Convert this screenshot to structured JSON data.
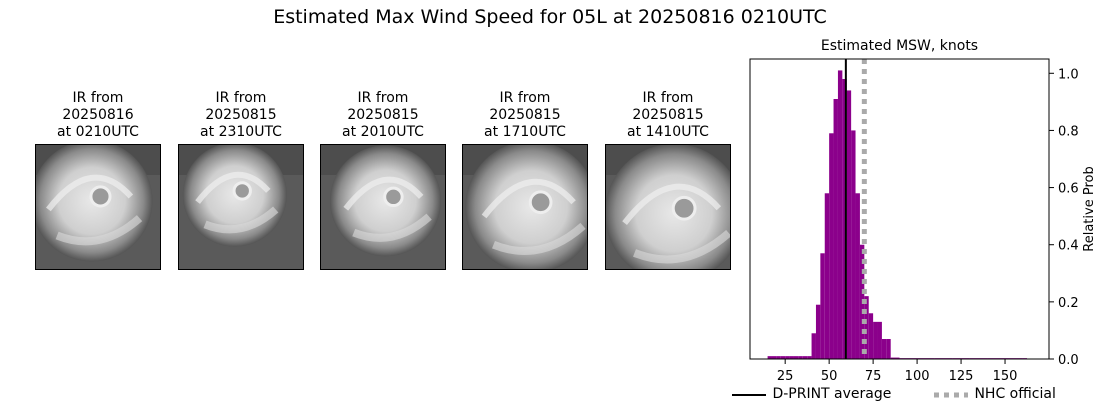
{
  "suptitle": "Estimated Max Wind Speed for 05L at 20250816 0210UTC",
  "ir_panels": [
    {
      "line1": "IR from",
      "line2": "20250816",
      "line3": "at 0210UTC"
    },
    {
      "line1": "IR from",
      "line2": "20250815",
      "line3": "at 2310UTC"
    },
    {
      "line1": "IR from",
      "line2": "20250815",
      "line3": "at 2010UTC"
    },
    {
      "line1": "IR from",
      "line2": "20250815",
      "line3": "at 1710UTC"
    },
    {
      "line1": "IR from",
      "line2": "20250815",
      "line3": "at 1410UTC"
    }
  ],
  "chart_data": {
    "type": "bar",
    "title": "Estimated MSW, knots",
    "xlabel": "",
    "ylabel": "Relative Prob",
    "xlim": [
      5,
      175
    ],
    "ylim": [
      0,
      1.05
    ],
    "xticks": [
      25,
      50,
      75,
      100,
      125,
      150
    ],
    "yticks": [
      0.0,
      0.2,
      0.4,
      0.6,
      0.8,
      1.0
    ],
    "ytick_labels": [
      "0.0",
      "0.2",
      "0.4",
      "0.6",
      "0.8",
      "1.0"
    ],
    "y_axis_side": "right",
    "bin_width": 2.5,
    "bins": [
      {
        "x": 15.0,
        "y": 0.01
      },
      {
        "x": 17.5,
        "y": 0.01
      },
      {
        "x": 20.0,
        "y": 0.01
      },
      {
        "x": 22.5,
        "y": 0.01
      },
      {
        "x": 25.0,
        "y": 0.01
      },
      {
        "x": 27.5,
        "y": 0.01
      },
      {
        "x": 30.0,
        "y": 0.01
      },
      {
        "x": 32.5,
        "y": 0.01
      },
      {
        "x": 35.0,
        "y": 0.01
      },
      {
        "x": 37.5,
        "y": 0.01
      },
      {
        "x": 40.0,
        "y": 0.09
      },
      {
        "x": 42.5,
        "y": 0.19
      },
      {
        "x": 45.0,
        "y": 0.37
      },
      {
        "x": 47.5,
        "y": 0.58
      },
      {
        "x": 50.0,
        "y": 0.79
      },
      {
        "x": 52.5,
        "y": 0.91
      },
      {
        "x": 55.0,
        "y": 1.01
      },
      {
        "x": 57.5,
        "y": 0.98
      },
      {
        "x": 60.0,
        "y": 0.94
      },
      {
        "x": 62.5,
        "y": 0.8
      },
      {
        "x": 65.0,
        "y": 0.58
      },
      {
        "x": 67.5,
        "y": 0.4
      },
      {
        "x": 70.0,
        "y": 0.22
      },
      {
        "x": 72.5,
        "y": 0.16
      },
      {
        "x": 75.0,
        "y": 0.13
      },
      {
        "x": 77.5,
        "y": 0.13
      },
      {
        "x": 80.0,
        "y": 0.07
      },
      {
        "x": 82.5,
        "y": 0.07
      },
      {
        "x": 85.0,
        "y": 0.005
      },
      {
        "x": 90.0,
        "y": 0.003
      },
      {
        "x": 100.0,
        "y": 0.003
      },
      {
        "x": 110.0,
        "y": 0.003
      },
      {
        "x": 120.0,
        "y": 0.003
      },
      {
        "x": 130.0,
        "y": 0.003
      },
      {
        "x": 140.0,
        "y": 0.003
      },
      {
        "x": 150.0,
        "y": 0.003
      },
      {
        "x": 160.0,
        "y": 0.003
      }
    ],
    "bar_color": "#8b008b",
    "vlines": [
      {
        "name": "D-PRINT average",
        "x": 59.5,
        "color": "#000000",
        "style": "solid"
      },
      {
        "name": "NHC official",
        "x": 70.0,
        "color": "#aaaaaa",
        "style": "dotted"
      }
    ],
    "legend_placement": "bottom"
  }
}
